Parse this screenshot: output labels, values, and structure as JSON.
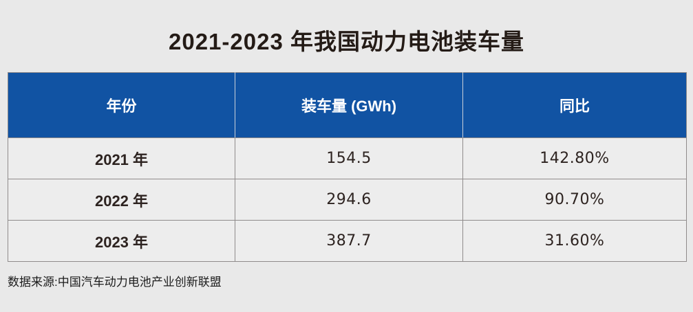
{
  "title": "2021-2023 年我国动力电池装车量",
  "table": {
    "headers": [
      "年份",
      "装车量 (GWh)",
      "同比"
    ],
    "rows": [
      [
        "2021 年",
        "154.5",
        "142.80%"
      ],
      [
        "2022 年",
        "294.6",
        "90.70%"
      ],
      [
        "2023 年",
        "387.7",
        "31.60%"
      ]
    ]
  },
  "source": "数据来源:中国汽车动力电池产业创新联盟",
  "colors": {
    "page_background": "#e9e9e9",
    "cell_background": "#ededed",
    "header_background": "#1153a3",
    "header_text": "#ffffff",
    "body_text": "#2d2320",
    "border": "#8f8b8b"
  },
  "chart_data": {
    "type": "table",
    "title": "2021-2023 年我国动力电池装车量",
    "columns": [
      "年份",
      "装车量 (GWh)",
      "同比"
    ],
    "rows": [
      {
        "year": "2021 年",
        "installed_gwh": 154.5,
        "yoy": "142.80%"
      },
      {
        "year": "2022 年",
        "installed_gwh": 294.6,
        "yoy": "90.70%"
      },
      {
        "year": "2023 年",
        "installed_gwh": 387.7,
        "yoy": "31.60%"
      }
    ],
    "source": "数据来源:中国汽车动力电池产业创新联盟"
  }
}
